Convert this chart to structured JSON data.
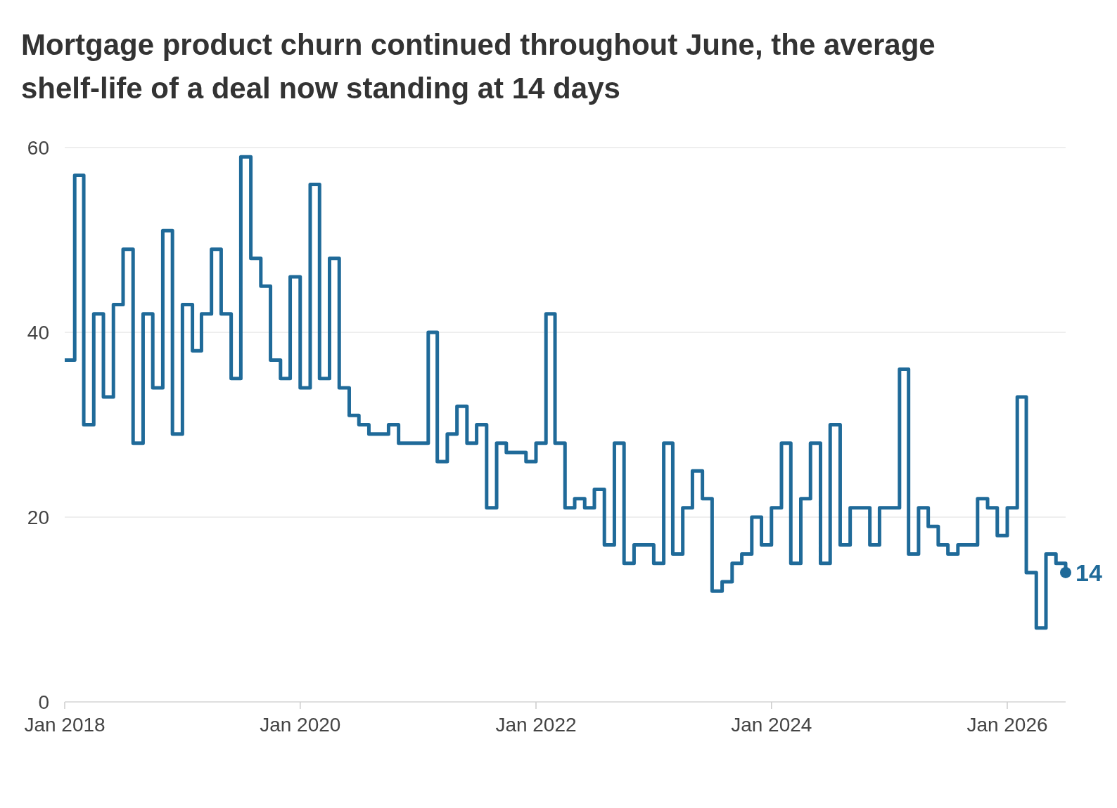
{
  "chart_data": {
    "type": "step",
    "title": "Mortgage product churn continued throughout June, the average shelf-life of a deal now standing at 14 days",
    "x": [
      "2018-01",
      "2018-02",
      "2018-03",
      "2018-04",
      "2018-05",
      "2018-06",
      "2018-07",
      "2018-08",
      "2018-09",
      "2018-10",
      "2018-11",
      "2018-12",
      "2019-01",
      "2019-02",
      "2019-03",
      "2019-04",
      "2019-05",
      "2019-06",
      "2019-07",
      "2019-08",
      "2019-09",
      "2019-10",
      "2019-11",
      "2019-12",
      "2020-01",
      "2020-02",
      "2020-03",
      "2020-04",
      "2020-05",
      "2020-06",
      "2020-07",
      "2020-08",
      "2020-09",
      "2020-10",
      "2020-11",
      "2020-12",
      "2021-01",
      "2021-02",
      "2021-03",
      "2021-04",
      "2021-05",
      "2021-06",
      "2021-07",
      "2021-08",
      "2021-09",
      "2021-10",
      "2021-11",
      "2021-12",
      "2022-01",
      "2022-02",
      "2022-03",
      "2022-04",
      "2022-05",
      "2022-06",
      "2022-07",
      "2022-08",
      "2022-09",
      "2022-10",
      "2022-11",
      "2022-12",
      "2023-01",
      "2023-02",
      "2023-03",
      "2023-04",
      "2023-05",
      "2023-06",
      "2023-07",
      "2023-08",
      "2023-09",
      "2023-10",
      "2023-11",
      "2023-12",
      "2024-01",
      "2024-02",
      "2024-03",
      "2024-04",
      "2024-05",
      "2024-06",
      "2024-07",
      "2024-08",
      "2024-09",
      "2024-10",
      "2024-11",
      "2024-12",
      "2025-01",
      "2025-02",
      "2025-03",
      "2025-04",
      "2025-05",
      "2025-06",
      "2025-07",
      "2025-08",
      "2025-09",
      "2025-10",
      "2025-11",
      "2025-12",
      "2026-01",
      "2026-02",
      "2026-03",
      "2026-04",
      "2026-05",
      "2026-06",
      "2026-07"
    ],
    "series": [
      {
        "color": "#1f6a99",
        "values": [
          37,
          57,
          30,
          42,
          33,
          43,
          49,
          28,
          42,
          34,
          51,
          29,
          43,
          38,
          42,
          49,
          42,
          35,
          59,
          48,
          45,
          37,
          35,
          46,
          34,
          56,
          35,
          48,
          34,
          31,
          30,
          29,
          29,
          30,
          28,
          28,
          28,
          40,
          26,
          29,
          32,
          28,
          30,
          21,
          28,
          27,
          27,
          26,
          28,
          42,
          28,
          21,
          22,
          21,
          23,
          17,
          28,
          15,
          17,
          17,
          15,
          28,
          16,
          21,
          25,
          22,
          12,
          13,
          15,
          16,
          20,
          17,
          21,
          28,
          15,
          22,
          28,
          15,
          30,
          17,
          21,
          21,
          17,
          21,
          21,
          36,
          16,
          21,
          19,
          17,
          16,
          17,
          17,
          22,
          21,
          18,
          21,
          33,
          14,
          8,
          16,
          15,
          14
        ],
        "value_labels": [
          null,
          null,
          null,
          null,
          null,
          null,
          null,
          null,
          null,
          null,
          null,
          null,
          null,
          null,
          null,
          null,
          null,
          null,
          null,
          null,
          null,
          null,
          null,
          null,
          null,
          null,
          null,
          null,
          null,
          null,
          null,
          null,
          null,
          null,
          null,
          null,
          null,
          null,
          null,
          null,
          null,
          null,
          null,
          null,
          null,
          null,
          null,
          null,
          null,
          null,
          null,
          null,
          null,
          null,
          null,
          null,
          null,
          null,
          null,
          null,
          null,
          null,
          null,
          null,
          null,
          null,
          null,
          null,
          null,
          null,
          null,
          null,
          null,
          null,
          null,
          null,
          null,
          null,
          null,
          null,
          null,
          null,
          null,
          null,
          null,
          null,
          null,
          null,
          null,
          null,
          null,
          null,
          null,
          null,
          null,
          null,
          null,
          null,
          null,
          null,
          null,
          null,
          "14"
        ]
      }
    ],
    "xlim": [
      "2018-01",
      "2026-07"
    ],
    "xticks": [
      {
        "value": "2018-01",
        "label": "Jan 2018"
      },
      {
        "value": "2020-01",
        "label": "Jan 2020"
      },
      {
        "value": "2022-01",
        "label": "Jan 2022"
      },
      {
        "value": "2024-01",
        "label": "Jan 2024"
      },
      {
        "value": "2026-01",
        "label": "Jan 2026"
      }
    ],
    "ylim": [
      0,
      60
    ],
    "yticks": [
      0,
      20,
      40,
      60
    ],
    "grid": "y",
    "marker": "none",
    "line_style": "solid"
  }
}
